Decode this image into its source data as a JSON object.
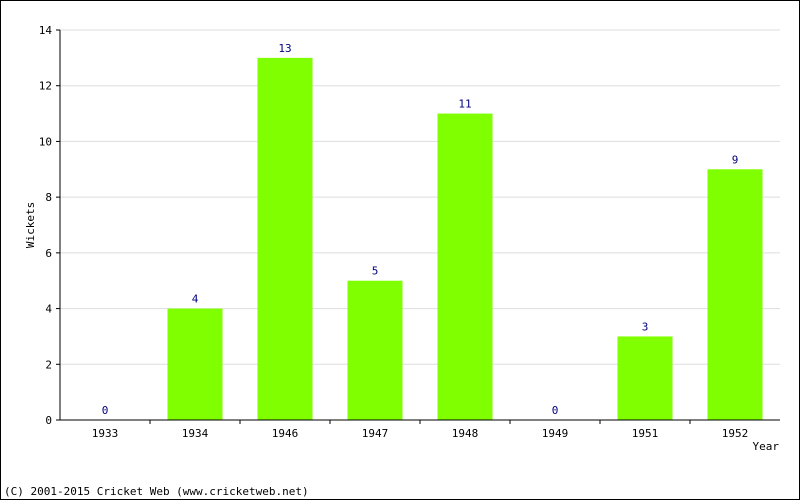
{
  "chart_data": {
    "type": "bar",
    "categories": [
      "1933",
      "1934",
      "1946",
      "1947",
      "1948",
      "1949",
      "1951",
      "1952"
    ],
    "values": [
      0,
      4,
      13,
      5,
      11,
      0,
      3,
      9
    ],
    "xlabel": "Year",
    "ylabel": "Wickets",
    "ylim": [
      0,
      14
    ],
    "yticks": [
      0,
      2,
      4,
      6,
      8,
      10,
      12,
      14
    ],
    "grid": true,
    "bar_color": "#7fff00",
    "label_color": "#000080"
  },
  "footer": {
    "copyright": "(C) 2001-2015 Cricket Web (www.cricketweb.net)"
  }
}
